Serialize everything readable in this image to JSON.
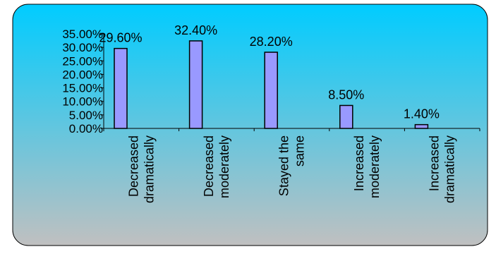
{
  "chart_data": {
    "type": "bar",
    "categories": [
      [
        "Decreased",
        "dramatically"
      ],
      [
        "Decreased",
        "moderately"
      ],
      [
        "Stayed the",
        "same"
      ],
      [
        "Increased",
        "moderately"
      ],
      [
        "Increased",
        "dramatically"
      ]
    ],
    "values": [
      29.6,
      32.4,
      28.2,
      8.5,
      1.4
    ],
    "data_labels": [
      "29.60%",
      "32.40%",
      "28.20%",
      "8.50%",
      "1.40%"
    ],
    "y_ticks": [
      "0.00%",
      "5.00%",
      "10.00%",
      "15.00%",
      "20.00%",
      "25.00%",
      "30.00%",
      "35.00%"
    ],
    "ylim": [
      0,
      35
    ],
    "title": "",
    "xlabel": "",
    "ylabel": "",
    "grid": false,
    "legend": "none",
    "colors": {
      "bar_fill": "#9999ff",
      "bar_stroke": "#000000",
      "background_top": "#00ccff",
      "background_bottom": "#c0c0c0",
      "frame_stroke": "#000000"
    }
  }
}
